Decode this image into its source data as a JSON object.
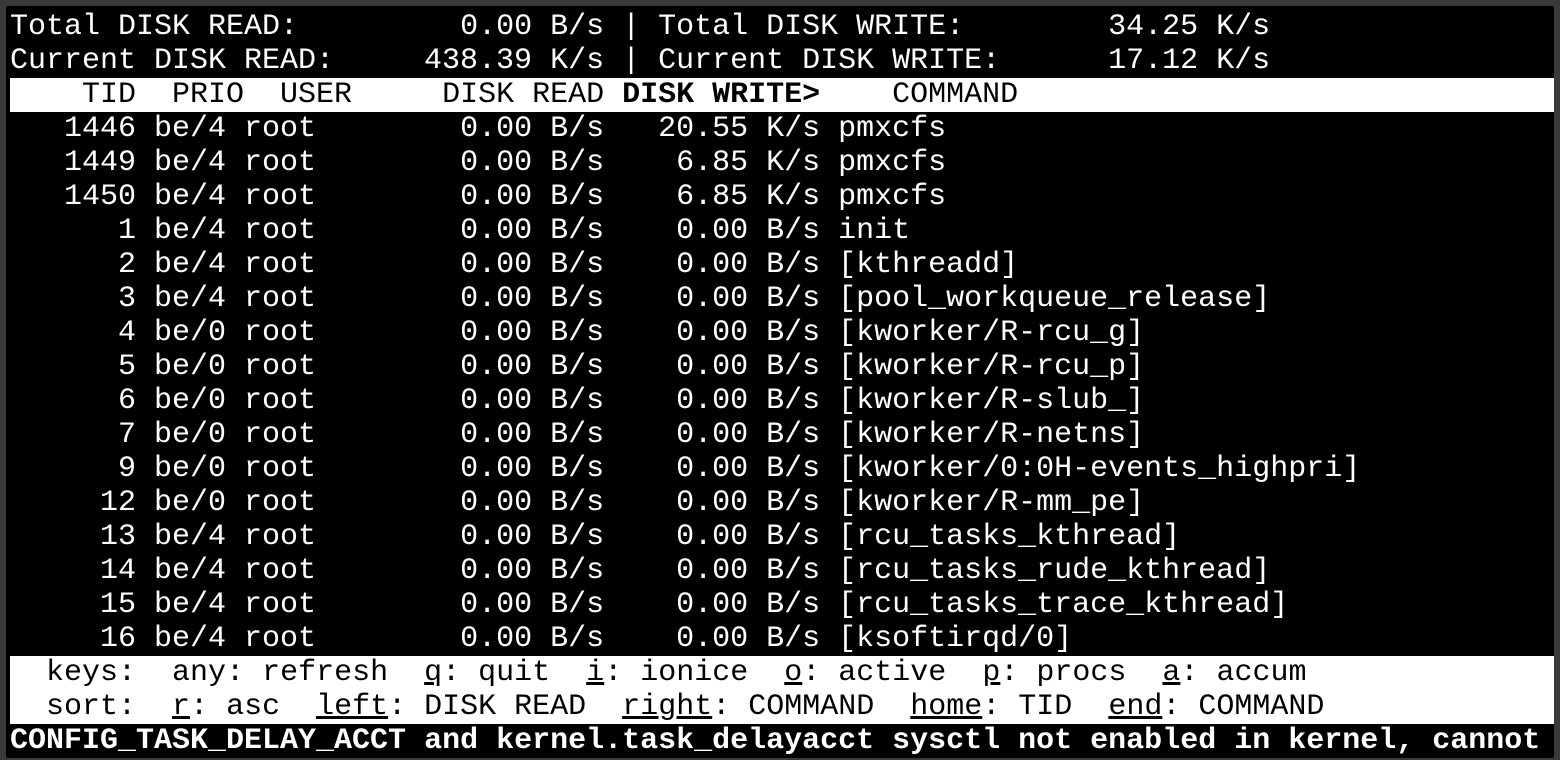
{
  "summary": {
    "total_read_label": "Total DISK READ:",
    "total_read": "0.00 B/s",
    "total_write_label": "Total DISK WRITE:",
    "total_write": "34.25 K/s",
    "current_read_label": "Current DISK READ:",
    "current_read": "438.39 K/s",
    "current_write_label": "Current DISK WRITE:",
    "current_write": "17.12 K/s",
    "separator": "|"
  },
  "columns": {
    "tid": "TID",
    "prio": "PRIO",
    "user": "USER",
    "read": "DISK READ",
    "write": "DISK WRITE>",
    "command": "COMMAND"
  },
  "rows": [
    {
      "tid": "1446",
      "prio": "be/4",
      "user": "root",
      "read": "0.00 B/s",
      "write": "20.55 K/s",
      "command": "pmxcfs"
    },
    {
      "tid": "1449",
      "prio": "be/4",
      "user": "root",
      "read": "0.00 B/s",
      "write": "6.85 K/s",
      "command": "pmxcfs"
    },
    {
      "tid": "1450",
      "prio": "be/4",
      "user": "root",
      "read": "0.00 B/s",
      "write": "6.85 K/s",
      "command": "pmxcfs"
    },
    {
      "tid": "1",
      "prio": "be/4",
      "user": "root",
      "read": "0.00 B/s",
      "write": "0.00 B/s",
      "command": "init"
    },
    {
      "tid": "2",
      "prio": "be/4",
      "user": "root",
      "read": "0.00 B/s",
      "write": "0.00 B/s",
      "command": "[kthreadd]"
    },
    {
      "tid": "3",
      "prio": "be/4",
      "user": "root",
      "read": "0.00 B/s",
      "write": "0.00 B/s",
      "command": "[pool_workqueue_release]"
    },
    {
      "tid": "4",
      "prio": "be/0",
      "user": "root",
      "read": "0.00 B/s",
      "write": "0.00 B/s",
      "command": "[kworker/R-rcu_g]"
    },
    {
      "tid": "5",
      "prio": "be/0",
      "user": "root",
      "read": "0.00 B/s",
      "write": "0.00 B/s",
      "command": "[kworker/R-rcu_p]"
    },
    {
      "tid": "6",
      "prio": "be/0",
      "user": "root",
      "read": "0.00 B/s",
      "write": "0.00 B/s",
      "command": "[kworker/R-slub_]"
    },
    {
      "tid": "7",
      "prio": "be/0",
      "user": "root",
      "read": "0.00 B/s",
      "write": "0.00 B/s",
      "command": "[kworker/R-netns]"
    },
    {
      "tid": "9",
      "prio": "be/0",
      "user": "root",
      "read": "0.00 B/s",
      "write": "0.00 B/s",
      "command": "[kworker/0:0H-events_highpri]"
    },
    {
      "tid": "12",
      "prio": "be/0",
      "user": "root",
      "read": "0.00 B/s",
      "write": "0.00 B/s",
      "command": "[kworker/R-mm_pe]"
    },
    {
      "tid": "13",
      "prio": "be/4",
      "user": "root",
      "read": "0.00 B/s",
      "write": "0.00 B/s",
      "command": "[rcu_tasks_kthread]"
    },
    {
      "tid": "14",
      "prio": "be/4",
      "user": "root",
      "read": "0.00 B/s",
      "write": "0.00 B/s",
      "command": "[rcu_tasks_rude_kthread]"
    },
    {
      "tid": "15",
      "prio": "be/4",
      "user": "root",
      "read": "0.00 B/s",
      "write": "0.00 B/s",
      "command": "[rcu_tasks_trace_kthread]"
    },
    {
      "tid": "16",
      "prio": "be/4",
      "user": "root",
      "read": "0.00 B/s",
      "write": "0.00 B/s",
      "command": "[ksoftirqd/0]"
    }
  ],
  "keys": {
    "label": "keys:",
    "items": [
      {
        "key": "any",
        "desc": "refresh",
        "underline": false
      },
      {
        "key": "q",
        "desc": "quit",
        "underline": true
      },
      {
        "key": "i",
        "desc": "ionice",
        "underline": true
      },
      {
        "key": "o",
        "desc": "active",
        "underline": true
      },
      {
        "key": "p",
        "desc": "procs",
        "underline": true
      },
      {
        "key": "a",
        "desc": "accum",
        "underline": true
      }
    ]
  },
  "sort": {
    "label": "sort:",
    "items": [
      {
        "key": "r",
        "desc": "asc",
        "underline": true
      },
      {
        "key": "left",
        "desc": "DISK READ",
        "underline": true
      },
      {
        "key": "right",
        "desc": "COMMAND",
        "underline": true
      },
      {
        "key": "home",
        "desc": "TID",
        "underline": true
      },
      {
        "key": "end",
        "desc": "COMMAND",
        "underline": true
      }
    ]
  },
  "warning": "CONFIG_TASK_DELAY_ACCT and kernel.task_delayacct sysctl not enabled in kernel, cannot"
}
